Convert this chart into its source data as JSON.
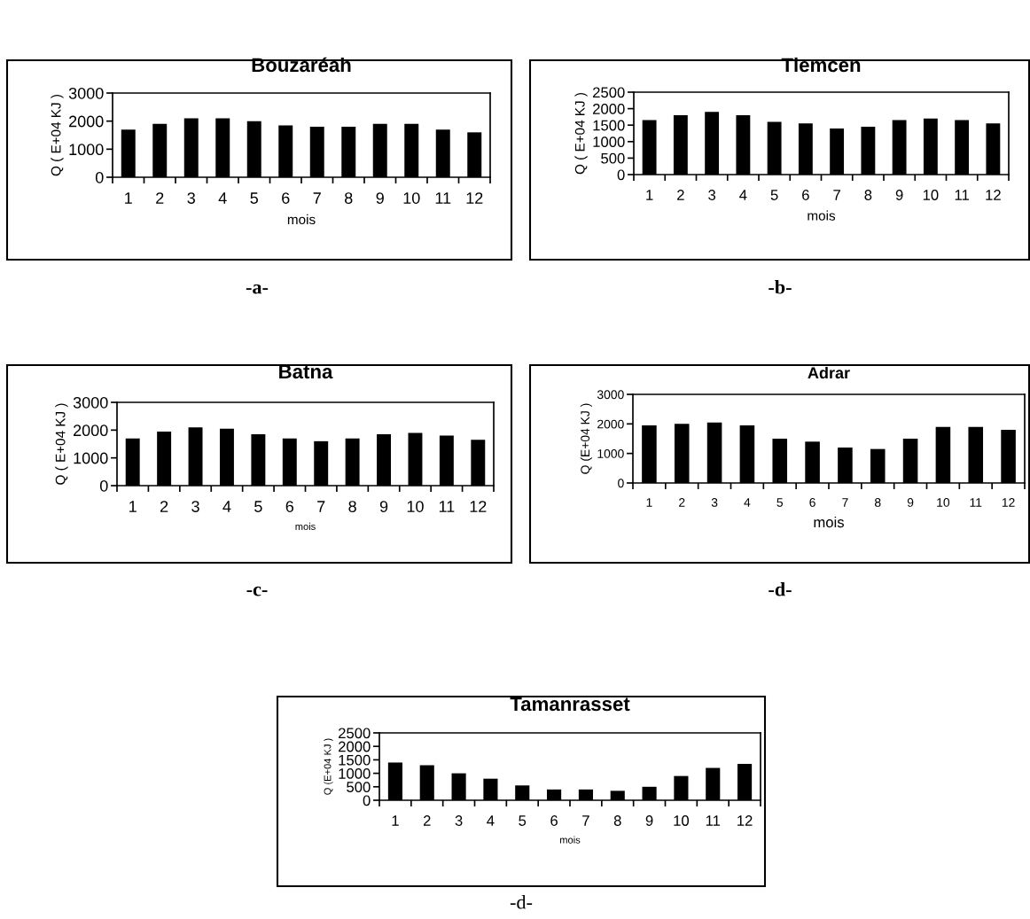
{
  "chart_data": [
    {
      "type": "bar",
      "title": "Bouzaréah",
      "xlabel": "mois",
      "ylabel": "Q ( E+04 KJ )",
      "categories": [
        "1",
        "2",
        "3",
        "4",
        "5",
        "6",
        "7",
        "8",
        "9",
        "10",
        "11",
        "12"
      ],
      "values": [
        1700,
        1900,
        2100,
        2100,
        2000,
        1850,
        1800,
        1800,
        1900,
        1900,
        1700,
        1600
      ],
      "color": "#000000",
      "ylim": [
        0,
        3000
      ],
      "yticks": [
        0,
        1000,
        2000,
        3000
      ],
      "grid": false,
      "legend": false,
      "annotations": [
        "-a-"
      ]
    },
    {
      "type": "bar",
      "title": "Tlemcen",
      "xlabel": "mois",
      "ylabel": "Q ( E+04 KJ )",
      "categories": [
        "1",
        "2",
        "3",
        "4",
        "5",
        "6",
        "7",
        "8",
        "9",
        "10",
        "11",
        "12"
      ],
      "values": [
        1650,
        1800,
        1900,
        1800,
        1600,
        1550,
        1400,
        1450,
        1650,
        1700,
        1650,
        1550
      ],
      "color": "#000000",
      "ylim": [
        0,
        2500
      ],
      "yticks": [
        0,
        500,
        1000,
        1500,
        2000,
        2500
      ],
      "grid": false,
      "legend": false,
      "annotations": [
        "-b-"
      ]
    },
    {
      "type": "bar",
      "title": "Batna",
      "xlabel": "mois",
      "ylabel": "Q ( E+04 KJ )",
      "categories": [
        "1",
        "2",
        "3",
        "4",
        "5",
        "6",
        "7",
        "8",
        "9",
        "10",
        "11",
        "12"
      ],
      "values": [
        1700,
        1950,
        2100,
        2050,
        1850,
        1700,
        1600,
        1700,
        1850,
        1900,
        1800,
        1650
      ],
      "color": "#000000",
      "ylim": [
        0,
        3000
      ],
      "yticks": [
        0,
        1000,
        2000,
        3000
      ],
      "grid": false,
      "legend": false,
      "annotations": [
        "-c-"
      ]
    },
    {
      "type": "bar",
      "title": "Adrar",
      "xlabel": "mois",
      "ylabel": "Q (E+04 KJ )",
      "categories": [
        "1",
        "2",
        "3",
        "4",
        "5",
        "6",
        "7",
        "8",
        "9",
        "10",
        "11",
        "12"
      ],
      "values": [
        1950,
        2000,
        2050,
        1950,
        1500,
        1400,
        1200,
        1150,
        1500,
        1900,
        1900,
        1800
      ],
      "color": "#000000",
      "ylim": [
        0,
        3000
      ],
      "yticks": [
        0,
        1000,
        2000,
        3000
      ],
      "grid": false,
      "legend": false,
      "annotations": [
        "-d-"
      ]
    },
    {
      "type": "bar",
      "title": "Tamanrasset",
      "xlabel": "mois",
      "ylabel": "Q (E+04 KJ )",
      "categories": [
        "1",
        "2",
        "3",
        "4",
        "5",
        "6",
        "7",
        "8",
        "9",
        "10",
        "11",
        "12"
      ],
      "values": [
        1400,
        1300,
        1000,
        800,
        550,
        400,
        400,
        350,
        500,
        900,
        1200,
        1350
      ],
      "color": "#000000",
      "ylim": [
        0,
        2500
      ],
      "yticks": [
        0,
        500,
        1000,
        1500,
        2000,
        2500
      ],
      "grid": false,
      "legend": false,
      "annotations": [
        "-d-"
      ]
    }
  ]
}
